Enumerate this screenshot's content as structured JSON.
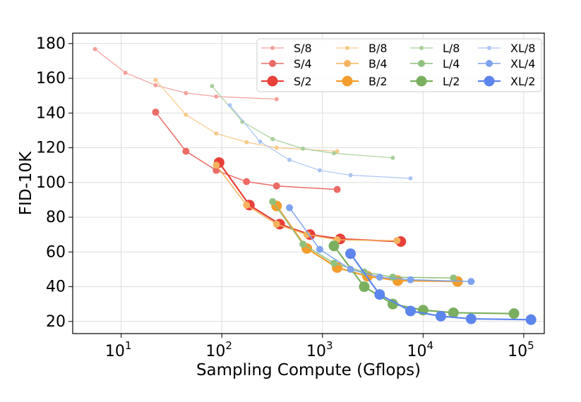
{
  "chart_data": {
    "type": "line",
    "title": "",
    "xlabel": "Sampling Compute (Gflops)",
    "ylabel": "FID-10K",
    "xscale": "log",
    "xlim": [
      3.3,
      160000
    ],
    "ylim": [
      13,
      186
    ],
    "grid": true,
    "legend_position": "top-right",
    "x_ticks": [
      {
        "value": 10,
        "base": "10",
        "exp": "1"
      },
      {
        "value": 100,
        "base": "10",
        "exp": "2"
      },
      {
        "value": 1000,
        "base": "10",
        "exp": "3"
      },
      {
        "value": 10000,
        "base": "10",
        "exp": "4"
      },
      {
        "value": 100000,
        "base": "10",
        "exp": "5"
      }
    ],
    "y_ticks": [
      "20",
      "40",
      "60",
      "80",
      "100",
      "120",
      "140",
      "160",
      "180"
    ],
    "series": [
      {
        "name": "S/8",
        "color": "#f4a09c",
        "size": "small",
        "points": [
          [
            5.5,
            176.8
          ],
          [
            11,
            163.2
          ],
          [
            22,
            156.0
          ],
          [
            44,
            151.5
          ],
          [
            88,
            149.5
          ],
          [
            350,
            148.0
          ]
        ]
      },
      {
        "name": "S/4",
        "color": "#ec6b66",
        "size": "medium",
        "points": [
          [
            22,
            140.5
          ],
          [
            44,
            118.0
          ],
          [
            88,
            107.0
          ],
          [
            176,
            100.5
          ],
          [
            350,
            98.0
          ],
          [
            1400,
            96.0
          ]
        ]
      },
      {
        "name": "S/2",
        "color": "#e8403a",
        "size": "large",
        "points": [
          [
            94,
            111.5
          ],
          [
            188,
            87.0
          ],
          [
            376,
            76.0
          ],
          [
            752,
            70.0
          ],
          [
            1500,
            67.5
          ],
          [
            6000,
            66.0
          ]
        ]
      },
      {
        "name": "B/8",
        "color": "#f7ca8a",
        "size": "small",
        "points": [
          [
            22,
            159.0
          ],
          [
            44,
            139.0
          ],
          [
            88,
            128.2
          ],
          [
            176,
            123.2
          ],
          [
            350,
            120.0
          ],
          [
            1400,
            118.0
          ]
        ]
      },
      {
        "name": "B/4",
        "color": "#f5b35e",
        "size": "medium",
        "points": [
          [
            88,
            110.0
          ],
          [
            176,
            87.0
          ],
          [
            350,
            76.0
          ],
          [
            700,
            70.0
          ],
          [
            1400,
            67.0
          ],
          [
            5500,
            66.5
          ]
        ]
      },
      {
        "name": "B/2",
        "color": "#f29d2c",
        "size": "large",
        "points": [
          [
            350,
            86.5
          ],
          [
            700,
            62.0
          ],
          [
            1400,
            51.0
          ],
          [
            2800,
            46.0
          ],
          [
            5600,
            43.5
          ],
          [
            22000,
            43.0
          ]
        ]
      },
      {
        "name": "L/8",
        "color": "#a9cf99",
        "size": "small",
        "points": [
          [
            80,
            155.5
          ],
          [
            160,
            135.0
          ],
          [
            320,
            125.0
          ],
          [
            640,
            119.5
          ],
          [
            1300,
            116.8
          ],
          [
            5000,
            114.2
          ]
        ]
      },
      {
        "name": "L/4",
        "color": "#91c17e",
        "size": "medium",
        "points": [
          [
            320,
            89.0
          ],
          [
            640,
            64.5
          ],
          [
            1300,
            53.5
          ],
          [
            2600,
            48.5
          ],
          [
            5000,
            45.5
          ],
          [
            20000,
            45.0
          ]
        ]
      },
      {
        "name": "L/2",
        "color": "#7aaf5f",
        "size": "large",
        "points": [
          [
            1300,
            63.5
          ],
          [
            2600,
            40.0
          ],
          [
            5000,
            30.0
          ],
          [
            10000,
            26.5
          ],
          [
            20000,
            25.0
          ],
          [
            80000,
            24.5
          ]
        ]
      },
      {
        "name": "XL/8",
        "color": "#abc4f3",
        "size": "small",
        "points": [
          [
            120,
            144.5
          ],
          [
            240,
            123.5
          ],
          [
            470,
            113.0
          ],
          [
            940,
            107.0
          ],
          [
            1900,
            104.2
          ],
          [
            7500,
            102.4
          ]
        ]
      },
      {
        "name": "XL/4",
        "color": "#7ea3ef",
        "size": "medium",
        "points": [
          [
            470,
            85.5
          ],
          [
            940,
            61.5
          ],
          [
            1900,
            50.0
          ],
          [
            3700,
            45.5
          ],
          [
            7500,
            44.0
          ],
          [
            30000,
            43.0
          ]
        ]
      },
      {
        "name": "XL/2",
        "color": "#5d85ee",
        "size": "large",
        "points": [
          [
            1900,
            59.0
          ],
          [
            3700,
            35.5
          ],
          [
            7500,
            26.0
          ],
          [
            15000,
            23.0
          ],
          [
            30000,
            21.5
          ],
          [
            118000,
            21.0
          ]
        ]
      }
    ]
  }
}
